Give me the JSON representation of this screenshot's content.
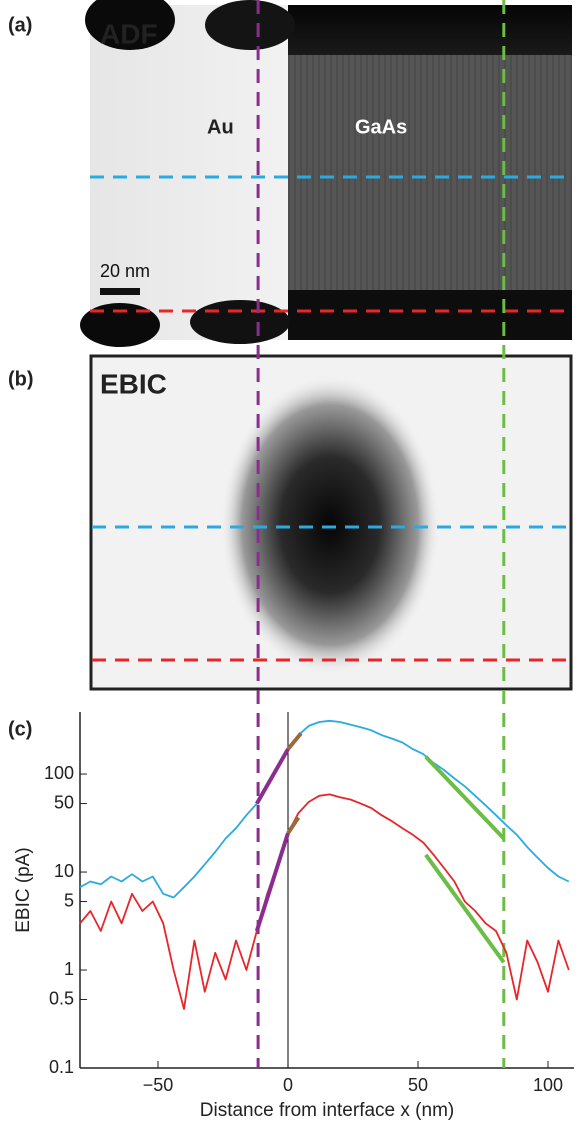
{
  "panels": {
    "a": {
      "label": "(a)",
      "title": "ADF",
      "left_material": "Au",
      "right_material": "GaAs",
      "scale_bar": "20 nm"
    },
    "b": {
      "label": "(b)",
      "title": "EBIC"
    }
  },
  "chart_data": {
    "type": "line",
    "panel_label": "(c)",
    "x_label": "Distance from interface x (nm)",
    "y_label": "EBIC (pA)",
    "log_y": true,
    "xlim": [
      -80,
      110
    ],
    "ylim": [
      0.1,
      430
    ],
    "xticks": [
      {
        "value": -50,
        "label": "−50"
      },
      0,
      50,
      100
    ],
    "yticks": [
      0.1,
      0.5,
      1,
      5,
      10,
      50,
      100
    ],
    "x": [
      -80,
      -76,
      -72,
      -68,
      -64,
      -60,
      -56,
      -52,
      -48,
      -44,
      -40,
      -36,
      -32,
      -28,
      -24,
      -20,
      -16,
      -12,
      -8,
      -4,
      0,
      4,
      8,
      12,
      16,
      20,
      24,
      28,
      32,
      36,
      40,
      44,
      48,
      52,
      56,
      60,
      64,
      68,
      72,
      76,
      80,
      84,
      88,
      92,
      96,
      100,
      104,
      108
    ],
    "series": [
      {
        "color": "#29abe2",
        "values": [
          7,
          8,
          7.5,
          9,
          8,
          9.5,
          8,
          9,
          6,
          5.5,
          7,
          9,
          12,
          16,
          22,
          28,
          38,
          50,
          80,
          120,
          180,
          250,
          310,
          340,
          350,
          340,
          320,
          300,
          280,
          250,
          230,
          210,
          180,
          160,
          130,
          110,
          90,
          75,
          60,
          48,
          38,
          30,
          24,
          18,
          14,
          11,
          9,
          8
        ]
      },
      {
        "color": "#e8262a",
        "values": [
          3,
          4,
          2.5,
          5,
          3,
          6,
          4,
          5,
          3,
          1,
          0.4,
          2,
          0.6,
          1.5,
          0.8,
          2,
          1,
          2.5,
          6,
          12,
          25,
          40,
          52,
          60,
          62,
          58,
          55,
          50,
          45,
          38,
          33,
          28,
          24,
          20,
          15,
          11,
          8,
          5,
          4,
          3,
          2.5,
          1.5,
          0.5,
          2,
          1.2,
          0.6,
          2,
          1
        ]
      }
    ],
    "fits": [
      {
        "color": "#8b2d8f",
        "x": [
          -12,
          0
        ],
        "values": [
          50,
          180
        ]
      },
      {
        "color": "#8b2d8f",
        "x": [
          -12,
          0
        ],
        "values": [
          2.5,
          25
        ]
      },
      {
        "color": "#9c6a3a",
        "x": [
          0,
          5
        ],
        "values": [
          180,
          260
        ]
      },
      {
        "color": "#9c6a3a",
        "x": [
          0,
          4
        ],
        "values": [
          25,
          36
        ]
      },
      {
        "color": "#6cbd45",
        "x": [
          53,
          83
        ],
        "values": [
          150,
          22
        ]
      },
      {
        "color": "#6cbd45",
        "x": [
          53,
          83
        ],
        "values": [
          15,
          1.2
        ]
      }
    ],
    "vlines": [
      {
        "x": -11.5,
        "color": "#8b2d8f",
        "dashed": true
      },
      {
        "x": 83,
        "color": "#6cbd45",
        "dashed": true
      },
      {
        "x": 0,
        "color": "#000000",
        "dashed": false
      }
    ]
  }
}
